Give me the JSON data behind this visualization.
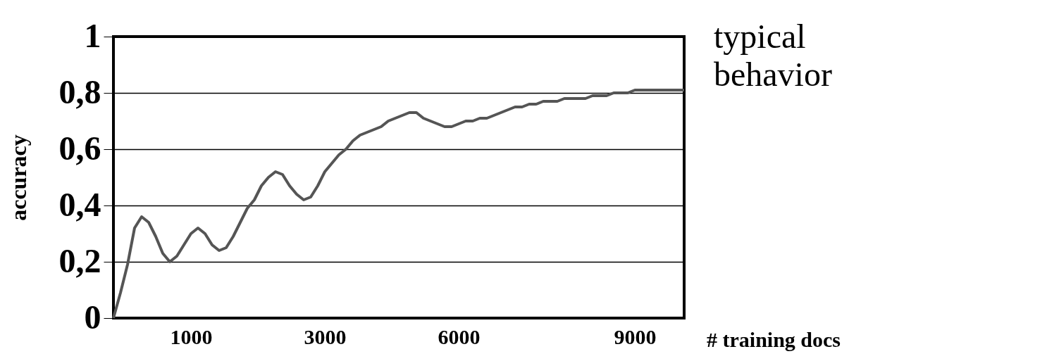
{
  "chart_data": {
    "type": "line",
    "xlabel": "# training docs",
    "ylabel": "accuracy",
    "annotations": [
      "typical behavior"
    ],
    "categories": [
      null,
      null,
      null,
      null,
      null,
      null,
      null,
      null,
      null,
      null,
      null,
      "1000",
      null,
      null,
      null,
      null,
      null,
      null,
      null,
      null,
      null,
      null,
      null,
      null,
      null,
      null,
      null,
      null,
      null,
      null,
      "3000",
      null,
      null,
      null,
      null,
      null,
      null,
      null,
      null,
      null,
      null,
      null,
      null,
      null,
      null,
      null,
      null,
      null,
      null,
      "6000",
      null,
      null,
      null,
      null,
      null,
      null,
      null,
      null,
      null,
      null,
      null,
      null,
      null,
      null,
      null,
      null,
      null,
      null,
      null,
      null,
      null,
      null,
      null,
      null,
      "9000",
      null,
      null,
      null,
      null,
      null,
      null,
      null
    ],
    "series": [
      {
        "color": "#555555",
        "values": [
          0,
          0.09,
          0.19,
          0.32,
          0.36,
          0.34,
          0.29,
          0.23,
          0.2,
          0.22,
          0.26,
          0.3,
          0.32,
          0.3,
          0.26,
          0.24,
          0.25,
          0.29,
          0.34,
          0.39,
          0.42,
          0.47,
          0.5,
          0.52,
          0.51,
          0.47,
          0.44,
          0.42,
          0.43,
          0.47,
          0.52,
          0.55,
          0.58,
          0.6,
          0.63,
          0.65,
          0.66,
          0.67,
          0.68,
          0.7,
          0.71,
          0.72,
          0.73,
          0.73,
          0.71,
          0.7,
          0.69,
          0.68,
          0.68,
          0.69,
          0.7,
          0.7,
          0.71,
          0.71,
          0.72,
          0.73,
          0.74,
          0.75,
          0.75,
          0.76,
          0.76,
          0.77,
          0.77,
          0.77,
          0.78,
          0.78,
          0.78,
          0.78,
          0.79,
          0.79,
          0.79,
          0.8,
          0.8,
          0.8,
          0.81,
          0.81,
          0.81,
          0.81,
          0.81,
          0.81,
          0.81,
          0.81
        ]
      }
    ],
    "ylim": [
      0,
      1
    ],
    "yticks": [
      0,
      {
        "value": 0.2,
        "label": "0,2"
      },
      {
        "value": 0.4,
        "label": "0,4"
      },
      {
        "value": 0.6,
        "label": "0,6"
      },
      {
        "value": 0.8,
        "label": "0,8"
      },
      1
    ],
    "grid": "y",
    "marker": "none",
    "line_style": "solid"
  }
}
